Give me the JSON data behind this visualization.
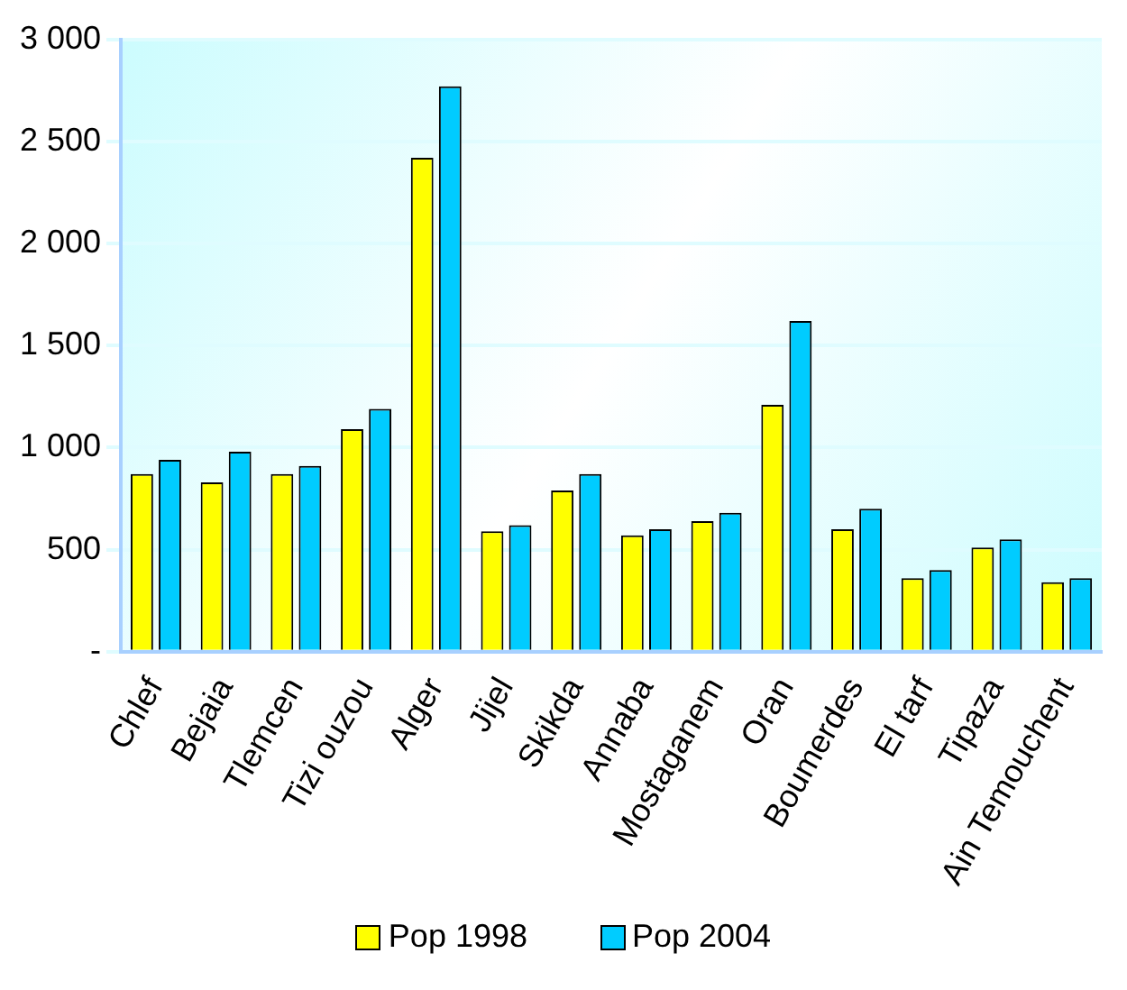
{
  "chart_data": {
    "type": "bar",
    "categories": [
      "Chlef",
      "Bejaia",
      "Tlemcen",
      "Tizi ouzou",
      "Alger",
      "Jijel",
      "Skikda",
      "Annaba",
      "Mostaganem",
      "Oran",
      "Boumerdes",
      "El tarf",
      "Tipaza",
      "Ain Temouchent"
    ],
    "series": [
      {
        "name": "Pop 1998",
        "color": "#ffff00",
        "values": [
          870,
          830,
          870,
          1090,
          2420,
          590,
          790,
          570,
          640,
          1210,
          600,
          360,
          510,
          340
        ]
      },
      {
        "name": "Pop 2004",
        "color": "#00ccff",
        "values": [
          940,
          980,
          910,
          1190,
          2770,
          620,
          870,
          600,
          680,
          1620,
          700,
          400,
          550,
          360
        ]
      }
    ],
    "ylim": [
      0,
      3000
    ],
    "yticks": [
      {
        "value": 0,
        "label": "-"
      },
      500,
      {
        "value": 1000,
        "label": "1 000"
      },
      {
        "value": 1500,
        "label": "1 500"
      },
      {
        "value": 2000,
        "label": "2 000"
      },
      {
        "value": 2500,
        "label": "2 500"
      },
      {
        "value": 3000,
        "label": "3 000"
      }
    ],
    "grid": "y",
    "legend": "bottom"
  }
}
